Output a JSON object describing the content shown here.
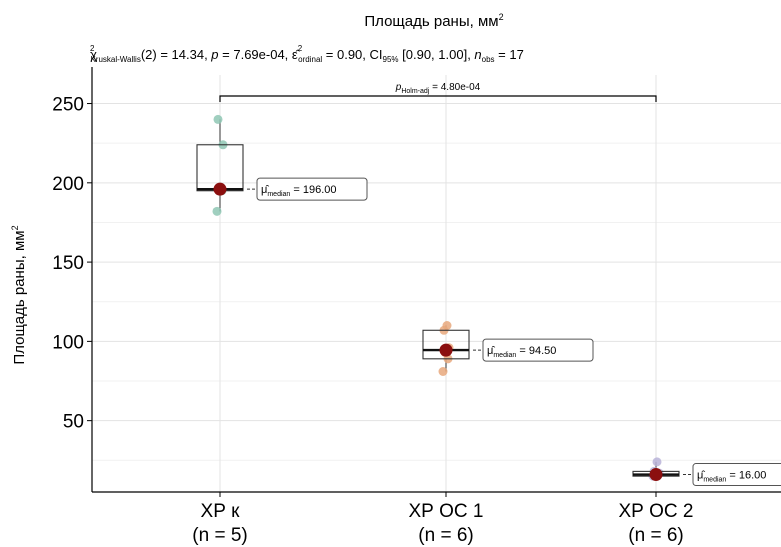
{
  "chart_data": {
    "type": "box",
    "title": "Площадь раны, мм",
    "title_sup": "2",
    "ylabel": "Площадь раны, мм",
    "ylabel_sup": "2",
    "subtitle": {
      "chi": "χ",
      "chi_sup": "2",
      "chi_sub": "Kruskal-Wallis",
      "part1": "(2) = 14.34, ",
      "p": "p",
      "part2": " = 7.69e-04, ",
      "eps": "ε̂",
      "eps_sup": "2",
      "eps_sub": "ordinal",
      "part3": " = 0.90, CI",
      "ci_sub": "95%",
      "part4": " [0.90, 1.00], ",
      "n": "n",
      "n_sub": "obs",
      "part5": " = 17"
    },
    "comparison": {
      "p": "p",
      "p_sub": "Holm-adj",
      "value": " = 4.80e-04",
      "from": "ХР к",
      "to": "ХР ОС 2"
    },
    "ylim": [
      5,
      268
    ],
    "yticks": [
      50,
      100,
      150,
      200,
      250
    ],
    "grid": true,
    "median_label": {
      "mu": "μ̂",
      "sub": "median"
    },
    "groups": [
      {
        "label": "ХР к",
        "n_label": "(n = 5)",
        "q1": 195,
        "median": 196,
        "q3": 224,
        "whisker_low": 182,
        "whisker_high": 240,
        "points": [
          182,
          195,
          196,
          224,
          240
        ],
        "median_text": " = 196.00",
        "color": "#8fc7b4"
      },
      {
        "label": "ХР ОС 1",
        "n_label": "(n = 6)",
        "q1": 89,
        "median": 94.5,
        "q3": 107,
        "whisker_low": 81,
        "whisker_high": 110,
        "points": [
          81,
          89,
          93,
          96,
          107,
          110
        ],
        "median_text": " = 94.50",
        "color": "#e8a87c"
      },
      {
        "label": "ХР ОС 2",
        "n_label": "(n = 6)",
        "q1": 15,
        "median": 16,
        "q3": 18,
        "whisker_low": 15,
        "whisker_high": 24,
        "points": [
          15,
          15.5,
          16,
          17,
          18,
          24
        ],
        "median_text": " = 16.00",
        "color": "#b9b3d8"
      }
    ],
    "median_point_color": "#8b0f0f"
  }
}
